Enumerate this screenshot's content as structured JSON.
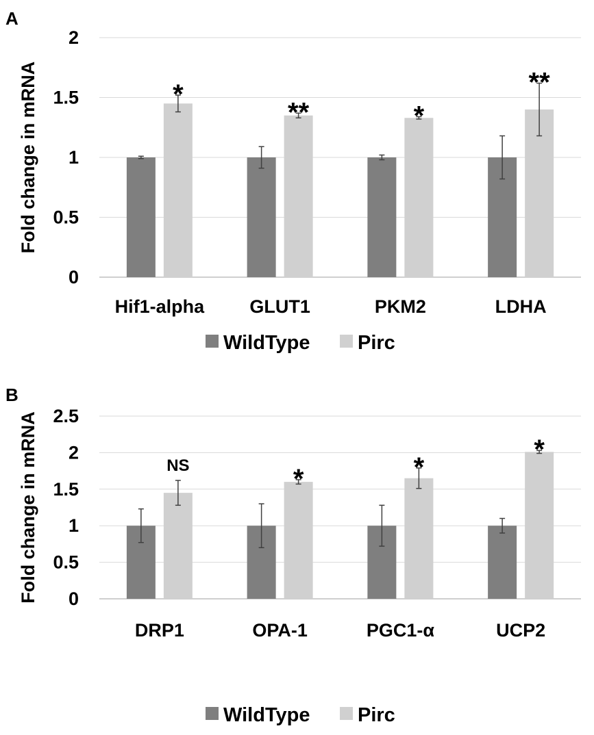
{
  "chart_data": [
    {
      "panel": "A",
      "type": "bar",
      "title": "",
      "xlabel": "",
      "ylabel": "Fold change in mRNA",
      "ylim": [
        0,
        2
      ],
      "yticks": [
        "0",
        "0.5",
        "1",
        "1.5",
        "2"
      ],
      "grid": true,
      "legend": "bottom-center",
      "categories": [
        "Hif1-alpha",
        "GLUT1",
        "PKM2",
        "LDHA"
      ],
      "series": [
        {
          "name": "WildType",
          "color": "#7f7f7f",
          "values": [
            1.0,
            1.0,
            1.0,
            1.0
          ],
          "errors": [
            0.01,
            0.09,
            0.02,
            0.18
          ]
        },
        {
          "name": "Pirc",
          "color": "#d0d0d0",
          "values": [
            1.45,
            1.35,
            1.33,
            1.4
          ],
          "errors": [
            0.07,
            0.02,
            0.01,
            0.22
          ]
        }
      ],
      "annotations": [
        "*",
        "**",
        "*",
        "**"
      ]
    },
    {
      "panel": "B",
      "type": "bar",
      "title": "",
      "xlabel": "",
      "ylabel": "Fold change in mRNA",
      "ylim": [
        0,
        2.5
      ],
      "yticks": [
        "0",
        "0.5",
        "1",
        "1.5",
        "2",
        "2.5"
      ],
      "grid": true,
      "legend": "bottom-center",
      "categories": [
        "DRP1",
        "OPA-1",
        "PGC1-α",
        "UCP2"
      ],
      "series": [
        {
          "name": "WildType",
          "color": "#7f7f7f",
          "values": [
            1.0,
            1.0,
            1.0,
            1.0
          ],
          "errors": [
            0.23,
            0.3,
            0.28,
            0.1
          ]
        },
        {
          "name": "Pirc",
          "color": "#d0d0d0",
          "values": [
            1.45,
            1.6,
            1.65,
            2.01
          ],
          "errors": [
            0.17,
            0.03,
            0.14,
            0.02
          ]
        }
      ],
      "annotations": [
        "NS",
        "*",
        "*",
        "*"
      ]
    }
  ]
}
